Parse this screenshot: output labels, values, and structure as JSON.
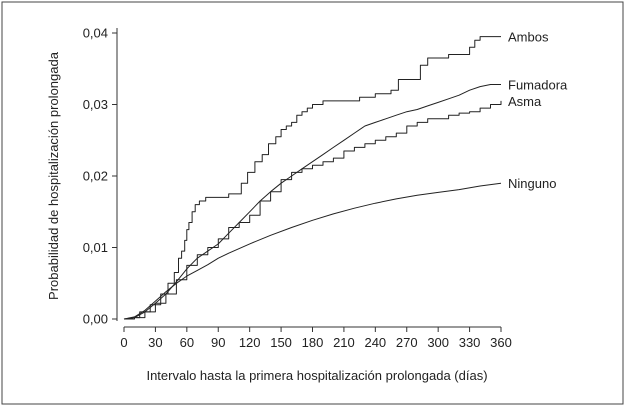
{
  "chart_data": {
    "type": "line",
    "title": "",
    "xlabel": "Intervalo hasta la primera hospitalización prolongada (días)",
    "ylabel": "Probabilidad de hospitalización prolongada",
    "xlim": [
      0,
      360
    ],
    "ylim": [
      0,
      0.04
    ],
    "xticks": [
      0,
      30,
      60,
      90,
      120,
      150,
      180,
      210,
      240,
      270,
      300,
      330,
      360
    ],
    "xtick_labels": [
      "0",
      "30",
      "60",
      "90",
      "120",
      "150",
      "180",
      "210",
      "240",
      "270",
      "300",
      "330",
      "360"
    ],
    "yticks": [
      0,
      0.01,
      0.02,
      0.03,
      0.04
    ],
    "ytick_labels": [
      "0,00",
      "0,01",
      "0,02",
      "0,03",
      "0,04"
    ],
    "grid": false,
    "legend": "direct labels at line ends",
    "series": [
      {
        "name": "Ambos",
        "color": "#222222",
        "step": true,
        "x": [
          0,
          8,
          15,
          25,
          35,
          42,
          48,
          52,
          55,
          58,
          60,
          62,
          65,
          68,
          72,
          78,
          84,
          90,
          100,
          112,
          118,
          125,
          132,
          138,
          145,
          150,
          155,
          160,
          165,
          170,
          175,
          180,
          190,
          200,
          210,
          225,
          240,
          255,
          262,
          270,
          283,
          290,
          300,
          310,
          320,
          330,
          335,
          340,
          350,
          360
        ],
        "y": [
          0,
          0.0002,
          0.001,
          0.002,
          0.0035,
          0.005,
          0.0065,
          0.0085,
          0.0095,
          0.011,
          0.0125,
          0.0135,
          0.015,
          0.016,
          0.0165,
          0.017,
          0.017,
          0.017,
          0.0175,
          0.019,
          0.0205,
          0.022,
          0.023,
          0.0245,
          0.0255,
          0.0265,
          0.027,
          0.0275,
          0.0285,
          0.029,
          0.0295,
          0.03,
          0.0305,
          0.0305,
          0.0305,
          0.031,
          0.0315,
          0.032,
          0.0335,
          0.0335,
          0.0355,
          0.0365,
          0.0365,
          0.037,
          0.037,
          0.038,
          0.039,
          0.0395,
          0.0395,
          0.0395
        ]
      },
      {
        "name": "Fumadora",
        "color": "#222222",
        "step": false,
        "x": [
          0,
          10,
          20,
          30,
          40,
          50,
          60,
          70,
          80,
          90,
          100,
          110,
          120,
          130,
          140,
          150,
          160,
          170,
          180,
          190,
          200,
          210,
          220,
          230,
          240,
          250,
          260,
          270,
          280,
          290,
          300,
          310,
          320,
          330,
          340,
          350,
          360
        ],
        "y": [
          0,
          0.0002,
          0.001,
          0.0022,
          0.0035,
          0.0052,
          0.007,
          0.0085,
          0.0095,
          0.0105,
          0.012,
          0.0135,
          0.015,
          0.0165,
          0.0178,
          0.019,
          0.02,
          0.021,
          0.022,
          0.023,
          0.024,
          0.025,
          0.026,
          0.027,
          0.0275,
          0.028,
          0.0285,
          0.029,
          0.0293,
          0.0298,
          0.0303,
          0.0308,
          0.0313,
          0.032,
          0.0325,
          0.0328,
          0.0328
        ]
      },
      {
        "name": "Asma",
        "color": "#222222",
        "step": true,
        "x": [
          0,
          10,
          20,
          30,
          40,
          50,
          60,
          70,
          80,
          90,
          100,
          110,
          120,
          130,
          140,
          150,
          160,
          170,
          180,
          190,
          200,
          210,
          220,
          230,
          240,
          250,
          260,
          270,
          280,
          290,
          300,
          310,
          320,
          330,
          340,
          350,
          360
        ],
        "y": [
          0,
          0.0002,
          0.001,
          0.0022,
          0.0035,
          0.0055,
          0.0075,
          0.009,
          0.01,
          0.0112,
          0.0128,
          0.0135,
          0.0145,
          0.0165,
          0.0178,
          0.0195,
          0.0205,
          0.021,
          0.0215,
          0.022,
          0.0225,
          0.0235,
          0.024,
          0.0245,
          0.025,
          0.0255,
          0.026,
          0.027,
          0.0275,
          0.028,
          0.028,
          0.0285,
          0.0288,
          0.029,
          0.0295,
          0.03,
          0.0305
        ]
      },
      {
        "name": "Ninguno",
        "color": "#222222",
        "step": false,
        "x": [
          0,
          10,
          20,
          30,
          40,
          50,
          60,
          70,
          80,
          90,
          100,
          120,
          140,
          160,
          180,
          200,
          220,
          240,
          260,
          280,
          300,
          320,
          340,
          360
        ],
        "y": [
          0,
          0.0003,
          0.0012,
          0.0025,
          0.0038,
          0.005,
          0.006,
          0.0068,
          0.0076,
          0.0085,
          0.0092,
          0.0105,
          0.0117,
          0.0128,
          0.0138,
          0.0147,
          0.0155,
          0.0162,
          0.0168,
          0.0173,
          0.0177,
          0.0181,
          0.0186,
          0.019
        ]
      }
    ]
  }
}
